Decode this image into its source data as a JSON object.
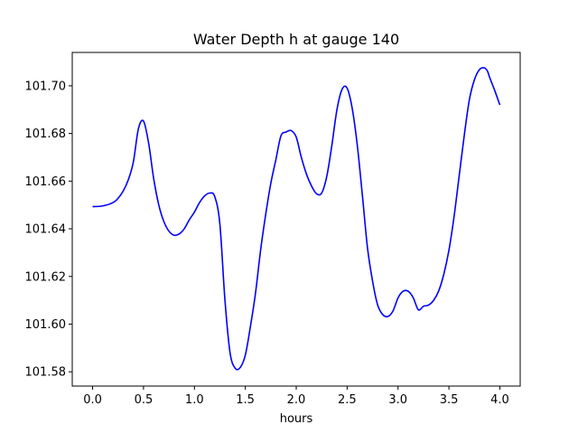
{
  "chart_data": {
    "type": "line",
    "title": "Water Depth h at gauge 140",
    "xlabel": "hours",
    "ylabel": "",
    "xlim": [
      -0.2,
      4.2
    ],
    "ylim": [
      101.574,
      101.714
    ],
    "xticks": [
      {
        "value": 0.0,
        "label": "0.0"
      },
      {
        "value": 0.5,
        "label": "0.5"
      },
      {
        "value": 1.0,
        "label": "1.0"
      },
      {
        "value": 1.5,
        "label": "1.5"
      },
      {
        "value": 2.0,
        "label": "2.0"
      },
      {
        "value": 2.5,
        "label": "2.5"
      },
      {
        "value": 3.0,
        "label": "3.0"
      },
      {
        "value": 3.5,
        "label": "3.5"
      },
      {
        "value": 4.0,
        "label": "4.0"
      }
    ],
    "yticks": [
      {
        "value": 101.58,
        "label": "101.58"
      },
      {
        "value": 101.6,
        "label": "101.60"
      },
      {
        "value": 101.62,
        "label": "101.62"
      },
      {
        "value": 101.64,
        "label": "101.64"
      },
      {
        "value": 101.66,
        "label": "101.66"
      },
      {
        "value": 101.68,
        "label": "101.68"
      },
      {
        "value": 101.7,
        "label": "101.70"
      }
    ],
    "grid": false,
    "series": [
      {
        "color": "#0000ff",
        "x": [
          0.0,
          0.1,
          0.2,
          0.25,
          0.3,
          0.35,
          0.4,
          0.45,
          0.5,
          0.55,
          0.6,
          0.65,
          0.7,
          0.75,
          0.8,
          0.85,
          0.9,
          0.95,
          1.0,
          1.05,
          1.1,
          1.15,
          1.2,
          1.25,
          1.3,
          1.35,
          1.4,
          1.45,
          1.5,
          1.55,
          1.6,
          1.65,
          1.7,
          1.75,
          1.8,
          1.85,
          1.9,
          1.95,
          2.0,
          2.05,
          2.1,
          2.15,
          2.2,
          2.25,
          2.3,
          2.35,
          2.4,
          2.45,
          2.5,
          2.55,
          2.6,
          2.65,
          2.7,
          2.75,
          2.8,
          2.85,
          2.9,
          2.95,
          3.0,
          3.05,
          3.1,
          3.15,
          3.2,
          3.25,
          3.3,
          3.35,
          3.4,
          3.45,
          3.5,
          3.55,
          3.6,
          3.65,
          3.7,
          3.75,
          3.8,
          3.85,
          3.88,
          3.9,
          3.95,
          4.0
        ],
        "y": [
          101.6493,
          101.6496,
          101.651,
          101.6528,
          101.6558,
          101.6605,
          101.668,
          101.682,
          101.6852,
          101.676,
          101.661,
          101.65,
          101.643,
          101.639,
          101.6373,
          101.6378,
          101.64,
          101.6438,
          101.647,
          101.651,
          101.6538,
          101.655,
          101.6535,
          101.642,
          101.61,
          101.588,
          101.5815,
          101.5818,
          101.587,
          101.599,
          101.613,
          101.631,
          101.646,
          101.659,
          101.669,
          101.679,
          101.6806,
          101.6812,
          101.6785,
          101.67,
          101.663,
          101.658,
          101.6547,
          101.655,
          101.662,
          101.675,
          101.69,
          101.6985,
          101.699,
          101.6905,
          101.675,
          101.654,
          101.632,
          101.618,
          101.608,
          101.604,
          101.6032,
          101.6055,
          101.611,
          101.6138,
          101.6138,
          101.611,
          101.606,
          101.6075,
          101.608,
          101.61,
          101.614,
          101.621,
          101.631,
          101.645,
          101.662,
          101.679,
          101.694,
          101.7025,
          101.7068,
          101.7075,
          101.706,
          101.7035,
          101.698,
          101.692
        ]
      }
    ]
  }
}
